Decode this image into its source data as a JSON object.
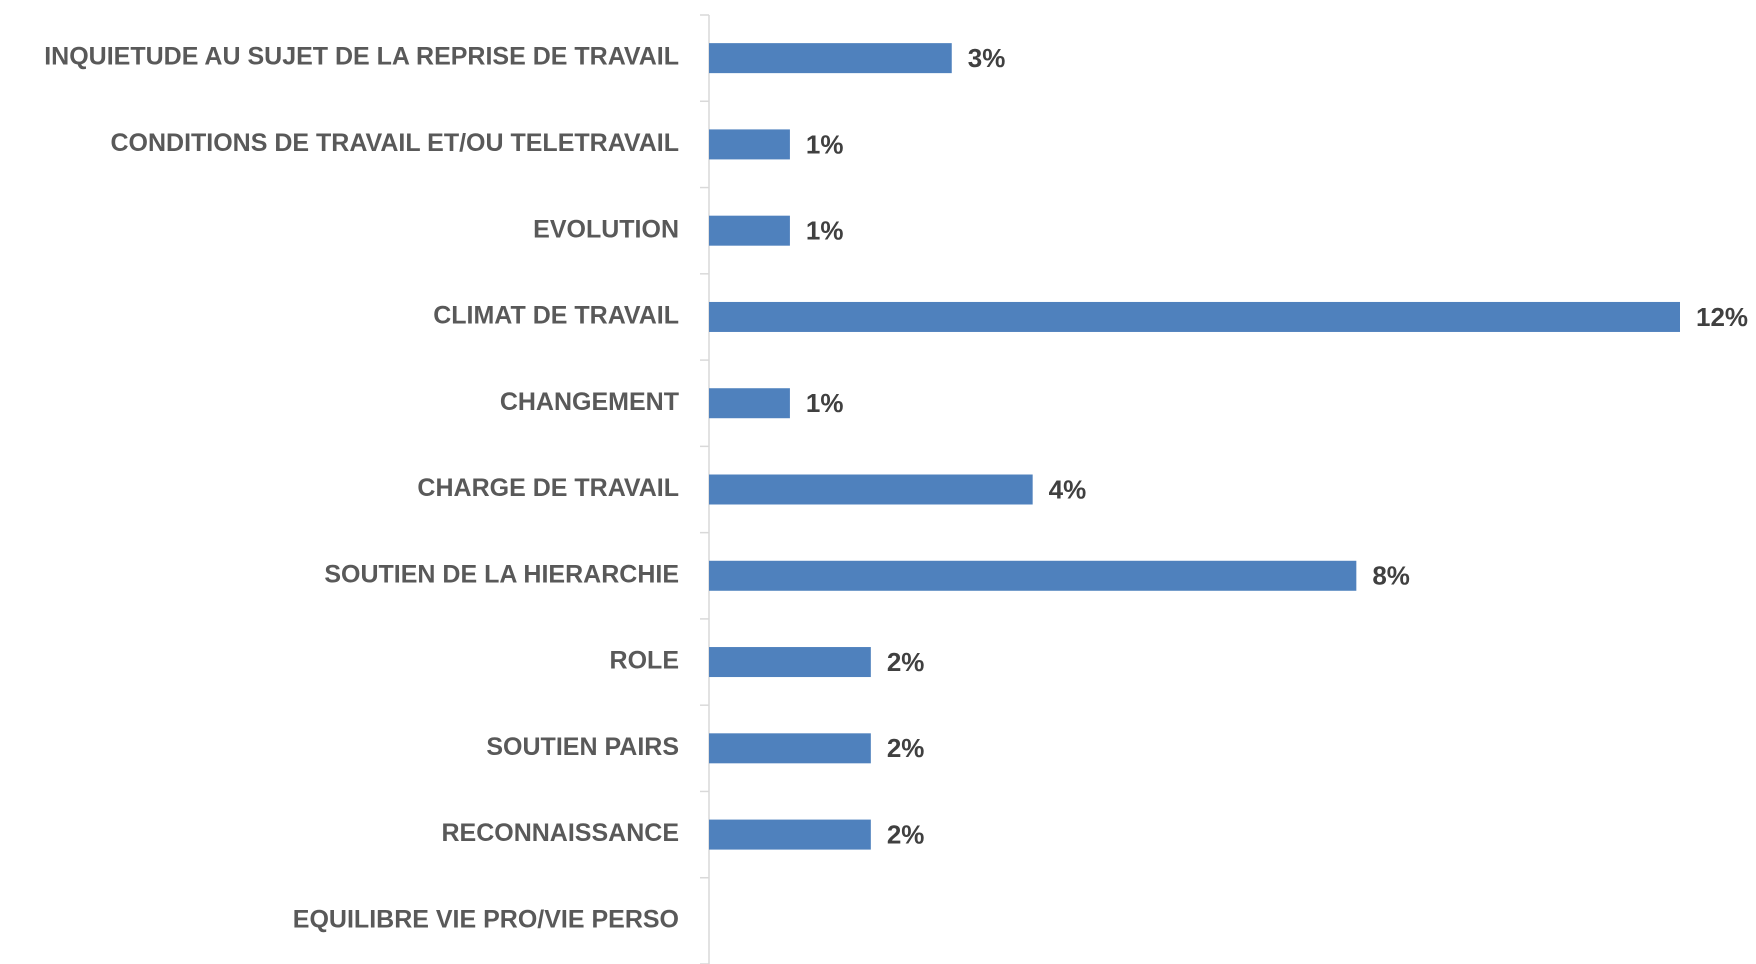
{
  "chart_data": {
    "type": "barh",
    "categories": [
      "INQUIETUDE AU SUJET DE LA REPRISE DE TRAVAIL",
      "CONDITIONS DE TRAVAIL ET/OU TELETRAVAIL",
      "EVOLUTION",
      "CLIMAT DE TRAVAIL",
      "CHANGEMENT",
      "CHARGE DE TRAVAIL",
      "SOUTIEN DE LA HIERARCHIE",
      "ROLE",
      "SOUTIEN PAIRS",
      "RECONNAISSANCE",
      "EQUILIBRE VIE PRO/VIE PERSO"
    ],
    "values": [
      3,
      1,
      1,
      12,
      1,
      4,
      8,
      2,
      2,
      2,
      null
    ],
    "value_labels": [
      "3%",
      "1%",
      "1%",
      "12%",
      "1%",
      "4%",
      "8%",
      "2%",
      "2%",
      "2%",
      null
    ],
    "color": "#4f81bd"
  }
}
